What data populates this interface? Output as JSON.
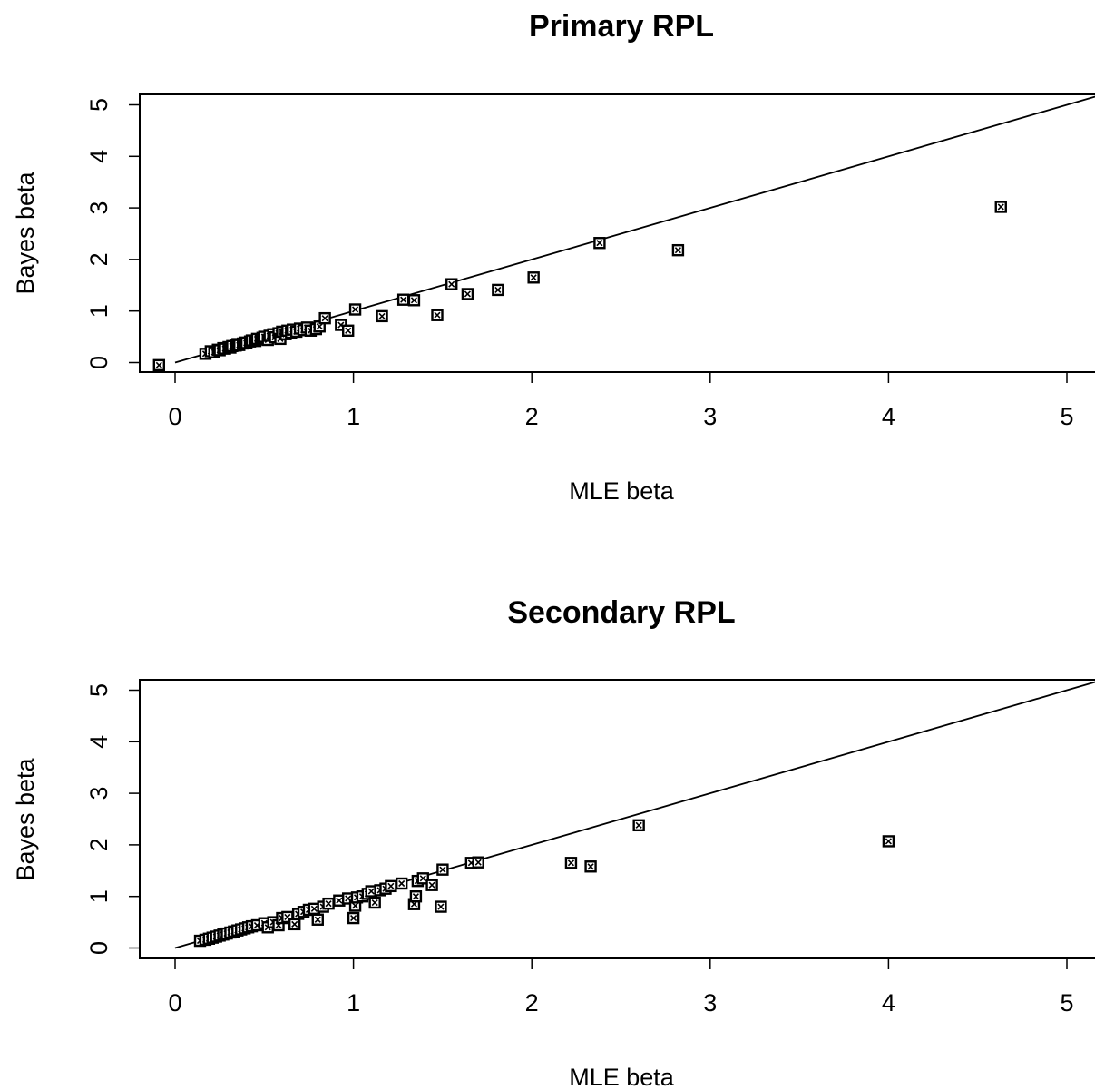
{
  "chart_data": [
    {
      "type": "scatter",
      "title": "Primary RPL",
      "xlabel": "MLE beta",
      "ylabel": "Bayes beta",
      "xlim": [
        -0.2,
        5.15
      ],
      "ylim": [
        -0.2,
        5.2
      ],
      "xticks": [
        "0",
        "1",
        "2",
        "3",
        "4",
        "5"
      ],
      "yticks": [
        "0",
        "1",
        "2",
        "3",
        "4",
        "5"
      ],
      "reference_line": "y = x",
      "grid": false,
      "series": [
        {
          "x": [
            -0.09,
            0.17,
            0.2,
            0.22,
            0.24,
            0.25,
            0.27,
            0.28,
            0.3,
            0.31,
            0.32,
            0.34,
            0.35,
            0.36,
            0.38,
            0.39,
            0.4,
            0.42,
            0.43,
            0.45,
            0.46,
            0.48,
            0.49,
            0.5,
            0.52,
            0.53,
            0.55,
            0.56,
            0.58,
            0.59,
            0.6,
            0.62,
            0.63,
            0.65,
            0.66,
            0.68,
            0.7,
            0.72,
            0.74,
            0.76,
            0.79,
            0.81,
            0.84,
            0.93,
            0.97,
            1.01,
            1.16,
            1.28,
            1.34,
            1.47,
            1.55,
            1.64,
            1.81,
            2.01,
            2.38,
            2.82,
            4.63
          ],
          "y": [
            -0.05,
            0.17,
            0.22,
            0.2,
            0.25,
            0.24,
            0.28,
            0.27,
            0.3,
            0.29,
            0.32,
            0.33,
            0.36,
            0.34,
            0.37,
            0.39,
            0.38,
            0.41,
            0.43,
            0.42,
            0.46,
            0.45,
            0.48,
            0.5,
            0.44,
            0.52,
            0.55,
            0.49,
            0.57,
            0.46,
            0.6,
            0.55,
            0.62,
            0.58,
            0.64,
            0.6,
            0.66,
            0.63,
            0.68,
            0.62,
            0.65,
            0.7,
            0.86,
            0.73,
            0.62,
            1.03,
            0.9,
            1.22,
            1.21,
            0.92,
            1.52,
            1.33,
            1.41,
            1.65,
            2.32,
            2.18,
            3.02
          ]
        }
      ]
    },
    {
      "type": "scatter",
      "title": "Secondary RPL",
      "xlabel": "MLE beta",
      "ylabel": "Bayes beta",
      "xlim": [
        -0.2,
        5.15
      ],
      "ylim": [
        -0.2,
        5.2
      ],
      "xticks": [
        "0",
        "1",
        "2",
        "3",
        "4",
        "5"
      ],
      "yticks": [
        "0",
        "1",
        "2",
        "3",
        "4",
        "5"
      ],
      "reference_line": "y = x",
      "grid": false,
      "series": [
        {
          "x": [
            0.14,
            0.17,
            0.19,
            0.21,
            0.23,
            0.25,
            0.27,
            0.29,
            0.31,
            0.33,
            0.35,
            0.37,
            0.39,
            0.41,
            0.43,
            0.46,
            0.5,
            0.52,
            0.55,
            0.58,
            0.6,
            0.63,
            0.67,
            0.69,
            0.72,
            0.75,
            0.78,
            0.8,
            0.83,
            0.86,
            0.92,
            0.97,
            1.0,
            1.01,
            1.02,
            1.05,
            1.08,
            1.1,
            1.12,
            1.15,
            1.18,
            1.21,
            1.27,
            1.34,
            1.35,
            1.36,
            1.39,
            1.44,
            1.49,
            1.5,
            1.66,
            1.7,
            2.22,
            2.33,
            2.6,
            4.0
          ],
          "y": [
            0.14,
            0.16,
            0.18,
            0.2,
            0.22,
            0.24,
            0.26,
            0.28,
            0.3,
            0.32,
            0.34,
            0.36,
            0.38,
            0.4,
            0.42,
            0.44,
            0.48,
            0.4,
            0.5,
            0.44,
            0.58,
            0.6,
            0.46,
            0.66,
            0.7,
            0.74,
            0.76,
            0.55,
            0.8,
            0.86,
            0.92,
            0.96,
            0.58,
            0.82,
            0.98,
            1.0,
            1.05,
            1.1,
            0.88,
            1.12,
            1.15,
            1.2,
            1.25,
            0.85,
            1.0,
            1.3,
            1.35,
            1.22,
            0.8,
            1.52,
            1.65,
            1.66,
            1.65,
            1.58,
            2.38,
            2.07
          ]
        }
      ]
    }
  ]
}
